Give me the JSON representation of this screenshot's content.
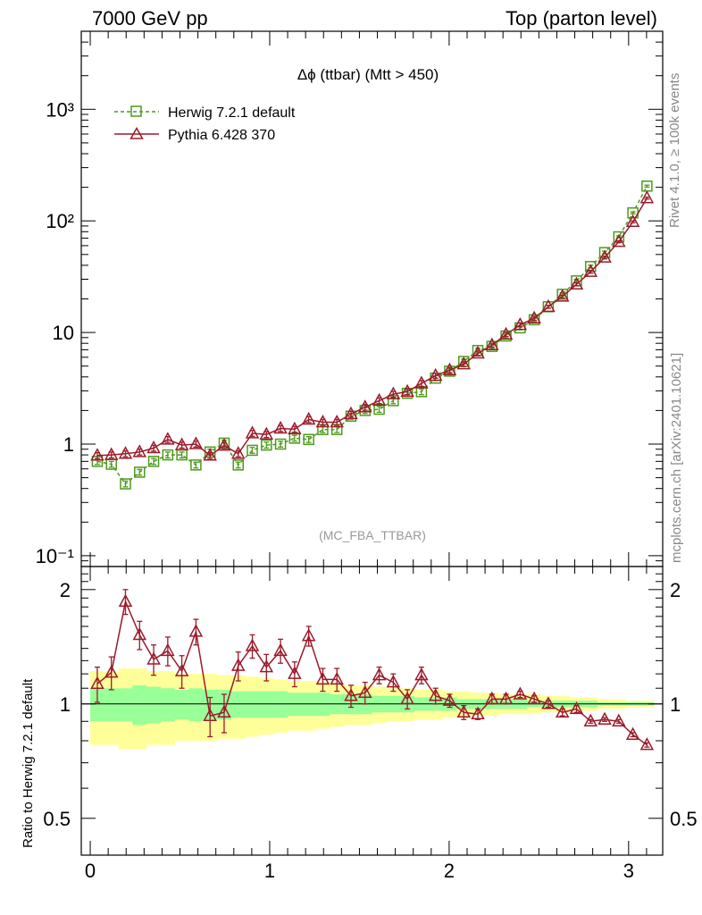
{
  "header": {
    "left": "7000 GeV pp",
    "right": "Top (parton level)"
  },
  "side": {
    "rivet": "Rivet 4.1.0, ≥ 100k events",
    "site": "mcplots.cern.ch [arXiv:2401.10621]"
  },
  "main": {
    "title": "Δϕ (ttbar) (Mtt > 450)",
    "analysis": "(MC_FBA_TTBAR)",
    "ytick_labels": [
      "10⁻¹",
      "1",
      "10",
      "10²",
      "10³"
    ]
  },
  "ratio": {
    "ylabel": "Ratio to Herwig 7.2.1 default",
    "ytick_labels": [
      "0.5",
      "1",
      "2"
    ]
  },
  "xtick_labels": [
    "0",
    "1",
    "2",
    "3"
  ],
  "colors": {
    "herwig": "#4d9a1c",
    "pythia": "#9b1a2a",
    "band_inner": "#99ff99",
    "band_outer": "#ffff99"
  },
  "chart_data": {
    "type": "line",
    "xlim": [
      -0.05,
      3.19
    ],
    "main_ylim": [
      0.08,
      5000
    ],
    "main_yscale": "log",
    "ratio_ylim": [
      0.4,
      2.3
    ],
    "ratio_yscale": "log",
    "x": [
      0.0393,
      0.1178,
      0.1963,
      0.2749,
      0.3534,
      0.432,
      0.5105,
      0.589,
      0.6676,
      0.7461,
      0.8247,
      0.9032,
      0.9817,
      1.0603,
      1.1388,
      1.2174,
      1.2959,
      1.3744,
      1.453,
      1.5315,
      1.6101,
      1.6886,
      1.7671,
      1.8457,
      1.9242,
      2.0028,
      2.0813,
      2.1598,
      2.2384,
      2.3169,
      2.3955,
      2.474,
      2.5525,
      2.6311,
      2.7096,
      2.7882,
      2.8667,
      2.9452,
      3.0238,
      3.1023
    ],
    "series": [
      {
        "name": "Herwig 7.2.1 default",
        "style": "dashed",
        "marker": "square",
        "values": [
          0.7,
          0.66,
          0.44,
          0.56,
          0.7,
          0.8,
          0.8,
          0.65,
          0.85,
          1.02,
          0.65,
          0.88,
          0.98,
          1.0,
          1.13,
          1.1,
          1.35,
          1.35,
          1.78,
          2.0,
          2.05,
          2.45,
          2.85,
          2.95,
          3.9,
          4.5,
          5.5,
          6.9,
          7.5,
          9.3,
          11.0,
          13.0,
          17.0,
          22.0,
          29.0,
          39.0,
          52.0,
          72.0,
          118.0,
          205.0
        ],
        "errors": [
          0.06,
          0.06,
          0.06,
          0.06,
          0.06,
          0.06,
          0.06,
          0.06,
          0.06,
          0.06,
          0.06,
          0.06,
          0.06,
          0.06,
          0.06,
          0.06,
          0.06,
          0.06,
          0.06,
          0.06,
          0.06,
          0.06,
          0.06,
          0.06,
          0.05,
          0.05,
          0.05,
          0.05,
          0.04,
          0.04,
          0.04,
          0.04,
          0.03,
          0.03,
          0.03,
          0.03,
          0.03,
          0.02,
          0.02,
          0.02
        ]
      },
      {
        "name": "Pythia 6.428 370",
        "style": "solid",
        "marker": "triangle",
        "values": [
          0.79,
          0.8,
          0.82,
          0.85,
          0.92,
          1.1,
          0.98,
          1.0,
          0.79,
          0.97,
          0.82,
          1.25,
          1.22,
          1.38,
          1.36,
          1.66,
          1.57,
          1.57,
          1.86,
          2.14,
          2.45,
          2.8,
          2.95,
          3.5,
          4.1,
          4.6,
          5.2,
          6.5,
          7.7,
          9.6,
          11.7,
          13.4,
          17.0,
          21.0,
          27.0,
          35.0,
          47.0,
          65.0,
          98.0,
          160.0
        ],
        "errors": [
          0.06,
          0.06,
          0.06,
          0.06,
          0.06,
          0.06,
          0.06,
          0.06,
          0.06,
          0.06,
          0.06,
          0.06,
          0.06,
          0.06,
          0.06,
          0.06,
          0.06,
          0.06,
          0.06,
          0.06,
          0.06,
          0.06,
          0.06,
          0.06,
          0.05,
          0.05,
          0.05,
          0.05,
          0.04,
          0.04,
          0.04,
          0.04,
          0.03,
          0.03,
          0.03,
          0.03,
          0.03,
          0.02,
          0.02,
          0.02
        ]
      }
    ],
    "ratio_values": [
      1.13,
      1.21,
      1.86,
      1.52,
      1.31,
      1.38,
      1.22,
      1.55,
      0.93,
      0.95,
      1.26,
      1.42,
      1.25,
      1.38,
      1.2,
      1.51,
      1.16,
      1.16,
      1.05,
      1.07,
      1.19,
      1.14,
      1.03,
      1.19,
      1.05,
      1.02,
      0.95,
      0.94,
      1.03,
      1.03,
      1.06,
      1.03,
      1.0,
      0.95,
      0.97,
      0.9,
      0.91,
      0.9,
      0.83,
      0.78
    ],
    "ratio_errors": [
      0.12,
      0.12,
      0.14,
      0.13,
      0.12,
      0.12,
      0.12,
      0.12,
      0.11,
      0.11,
      0.11,
      0.1,
      0.1,
      0.1,
      0.09,
      0.09,
      0.08,
      0.08,
      0.07,
      0.07,
      0.06,
      0.06,
      0.06,
      0.06,
      0.05,
      0.04,
      0.04,
      0.03,
      0.03,
      0.03,
      0.02,
      0.02,
      0.02,
      0.02,
      0.02,
      0.01,
      0.01,
      0.01,
      0.01,
      0.01
    ],
    "band_inner": [
      0.1,
      0.1,
      0.1,
      0.12,
      0.11,
      0.1,
      0.09,
      0.1,
      0.09,
      0.09,
      0.08,
      0.08,
      0.08,
      0.08,
      0.07,
      0.07,
      0.07,
      0.06,
      0.06,
      0.06,
      0.05,
      0.05,
      0.05,
      0.04,
      0.04,
      0.04,
      0.03,
      0.03,
      0.03,
      0.03,
      0.03,
      0.02,
      0.02,
      0.02,
      0.02,
      0.02,
      0.01,
      0.01,
      0.01,
      0.01
    ],
    "band_outer": [
      0.22,
      0.22,
      0.24,
      0.24,
      0.22,
      0.22,
      0.2,
      0.2,
      0.2,
      0.19,
      0.19,
      0.18,
      0.17,
      0.16,
      0.15,
      0.15,
      0.14,
      0.13,
      0.12,
      0.12,
      0.11,
      0.1,
      0.1,
      0.09,
      0.09,
      0.08,
      0.08,
      0.07,
      0.07,
      0.06,
      0.06,
      0.06,
      0.05,
      0.05,
      0.04,
      0.04,
      0.03,
      0.03,
      0.02,
      0.02
    ]
  }
}
